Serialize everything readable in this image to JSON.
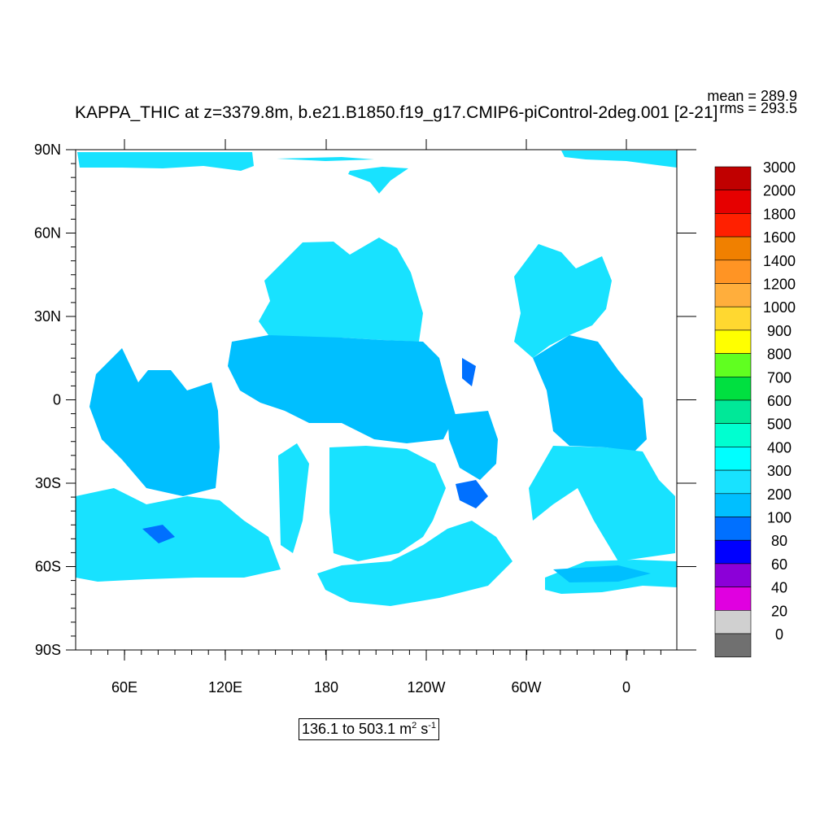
{
  "title": "KAPPA_THIC at z=3379.8m, b.e21.B1850.f19_g17.CMIP6-piControl-2deg.001 [2-21]",
  "stats": {
    "mean": "mean = 289.9",
    "rms": "rms = 293.5"
  },
  "range": {
    "text": "136.1 to 503.1 m",
    "sup1": "2",
    "mid": " s",
    "sup2": "-1"
  },
  "axes": {
    "lat_labels": [
      "90N",
      "60N",
      "30N",
      "0",
      "30S",
      "60S",
      "90S"
    ],
    "lon_labels": [
      "60E",
      "120E",
      "180",
      "120W",
      "60W",
      "0"
    ]
  },
  "colorbar": {
    "labels": [
      "3000",
      "2000",
      "1800",
      "1600",
      "1400",
      "1200",
      "1000",
      "900",
      "800",
      "700",
      "600",
      "500",
      "400",
      "300",
      "200",
      "100",
      "80",
      "60",
      "40",
      "20",
      "0"
    ],
    "colors": [
      "#c00000",
      "#e60000",
      "#ff2000",
      "#f08000",
      "#ff9424",
      "#ffae3c",
      "#ffd830",
      "#ffff00",
      "#60ff20",
      "#00e040",
      "#00e898",
      "#00ffd0",
      "#00ffff",
      "#18e2ff",
      "#00bfff",
      "#0070ff",
      "#0000ff",
      "#8c00d8",
      "#e000e0",
      "#d0d0d0",
      "#707070"
    ]
  },
  "ocean_colors": {
    "band_300_400": "#18e2ff",
    "band_200_300": "#00bfff",
    "band_100_200": "#0070ff"
  }
}
